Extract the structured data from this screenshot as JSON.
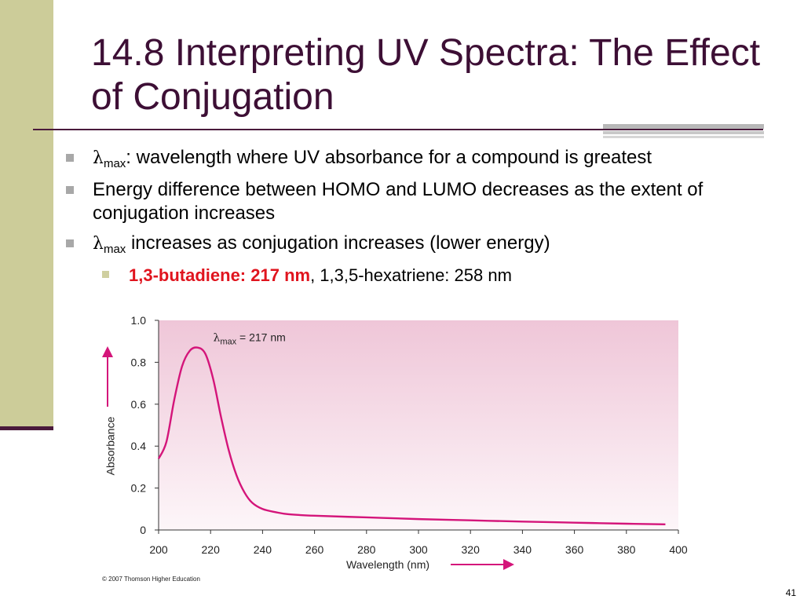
{
  "slide": {
    "title": "14.8 Interpreting UV Spectra: The Effect of Conjugation",
    "page_number": "41"
  },
  "bullets": [
    {
      "lambda": "λ",
      "sub": "max",
      "text": ": wavelength where UV absorbance for a compound is greatest"
    },
    {
      "text": "Energy difference between HOMO and LUMO decreases as the extent of conjugation increases"
    },
    {
      "lambda": "λ",
      "sub": "max",
      "text": " increases as conjugation increases (lower energy)"
    }
  ],
  "sub_bullet": {
    "highlight": "1,3-butadiene: 217 nm",
    "rest": ", 1,3,5-hexatriene: 258 nm"
  },
  "colors": {
    "title": "#3d0f35",
    "accent_bar": "#cccc99",
    "curve": "#d4157a",
    "highlight": "#e0141e",
    "plot_bg_top": "#efc6d8",
    "plot_bg_bottom": "#fdf6f9"
  },
  "chart_data": {
    "type": "line",
    "xlabel": "Wavelength (nm)",
    "ylabel": "Absorbance",
    "xlim": [
      200,
      400
    ],
    "ylim": [
      0,
      1.0
    ],
    "x_ticks": [
      "200",
      "220",
      "240",
      "260",
      "280",
      "300",
      "320",
      "340",
      "360",
      "380",
      "400"
    ],
    "y_ticks": [
      "0",
      "0.2",
      "0.4",
      "0.6",
      "0.8",
      "1.0"
    ],
    "annotation": {
      "lambda": "λ",
      "sub": "max",
      "text": " = 217 nm"
    },
    "copyright": "© 2007 Thomson Higher Education",
    "grid": false,
    "series": [
      {
        "x": [
          200,
          203,
          206,
          209,
          212,
          215,
          218,
          221,
          224,
          227,
          230,
          233,
          236,
          240,
          245,
          250,
          260,
          280,
          300,
          320,
          340,
          360,
          380,
          395
        ],
        "y": [
          0.34,
          0.42,
          0.62,
          0.78,
          0.855,
          0.87,
          0.84,
          0.72,
          0.54,
          0.38,
          0.26,
          0.18,
          0.13,
          0.1,
          0.085,
          0.075,
          0.068,
          0.06,
          0.052,
          0.046,
          0.04,
          0.035,
          0.03,
          0.027
        ]
      }
    ]
  }
}
